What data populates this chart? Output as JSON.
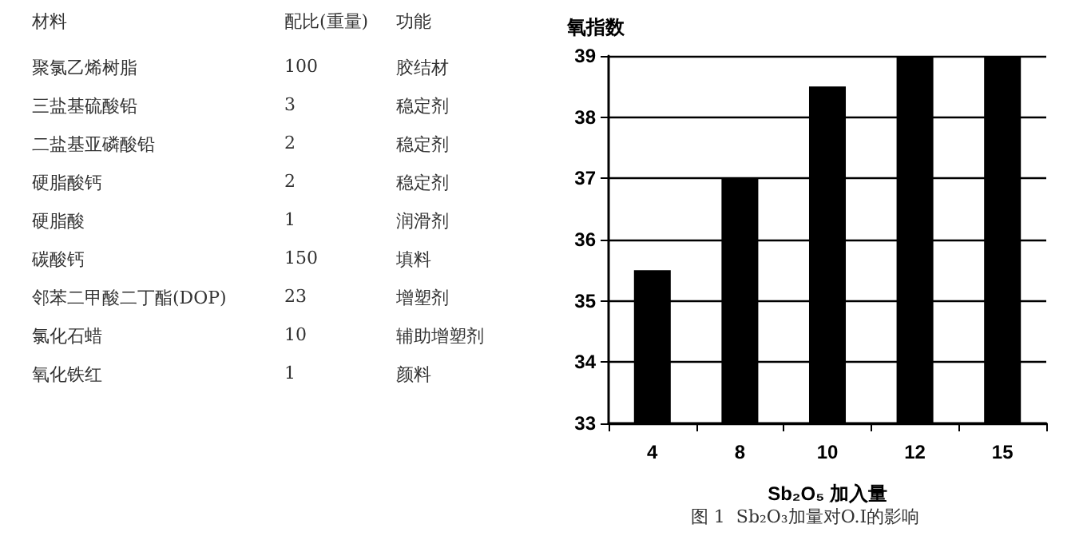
{
  "chart_data": [
    {
      "type": "other",
      "annotations": [
        "材料",
        "配比(重量)",
        "功能",
        "聚氯乙烯树脂",
        "100",
        "胶结材",
        "三盐基硫酸铅",
        "3",
        "稳定剂",
        "二盐基亚磷酸铅",
        "2",
        "稳定剂",
        "硬脂酸钙",
        "2",
        "稳定剂",
        "硬脂酸",
        "1",
        "润滑剂",
        "碳酸钙",
        "150",
        "填料",
        "邻苯二甲酸二丁酯(DOP)",
        "23",
        "增塑剂",
        "氯化石蜡",
        "10",
        "辅助增塑剂",
        "氧化铁红",
        "1",
        "颜料"
      ]
    },
    {
      "type": "bar",
      "categories": [
        "4",
        "8",
        "10",
        "12",
        "15"
      ],
      "values": [
        35.5,
        37,
        38.5,
        39,
        39
      ],
      "color": "#000000",
      "ylim": [
        33,
        39
      ],
      "yticks": [
        33,
        34,
        35,
        36,
        37,
        38,
        39
      ],
      "grid": "y",
      "ylabel": "氧指数",
      "xlabel": "Sb₂O₅ 加入量",
      "annotations": [
        "图 1  Sb₂O₃加量对O.I的影响"
      ]
    }
  ]
}
